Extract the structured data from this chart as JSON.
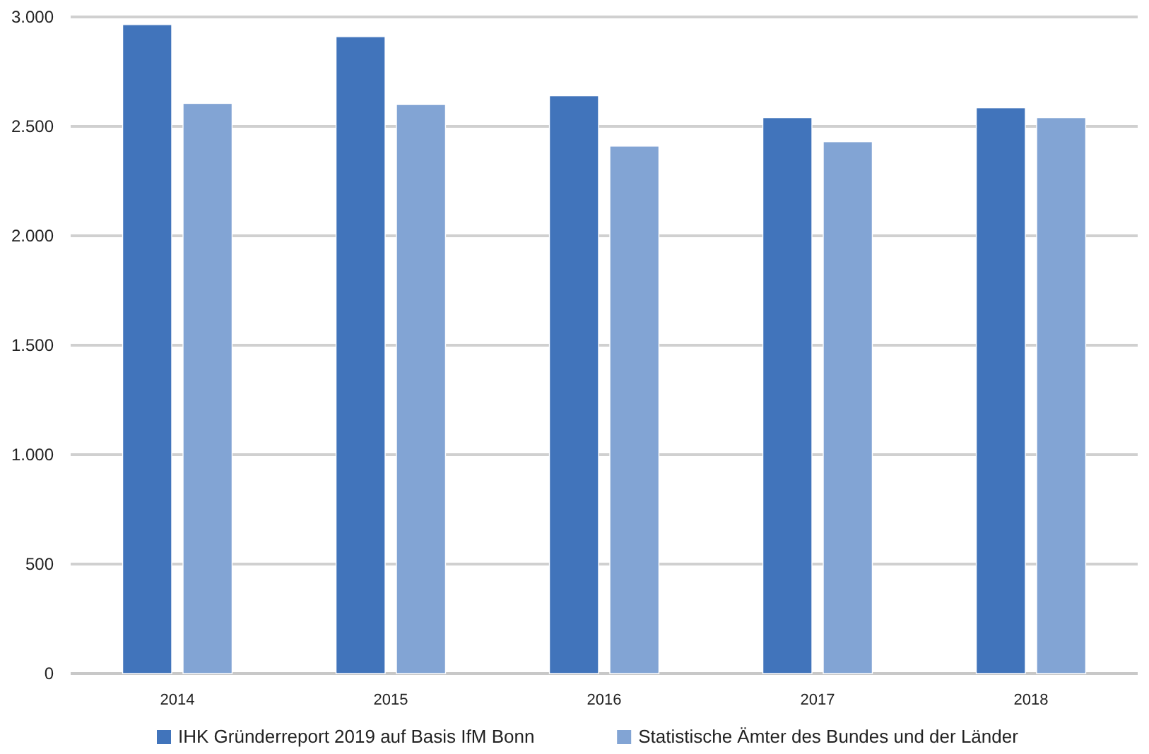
{
  "chart_data": {
    "type": "bar",
    "categories": [
      "2014",
      "2015",
      "2016",
      "2017",
      "2018"
    ],
    "series": [
      {
        "name": "IHK Gründerreport 2019 auf Basis IfM Bonn",
        "color": "#4174bb",
        "values": [
          2965,
          2910,
          2640,
          2540,
          2585
        ]
      },
      {
        "name": "Statistische Ämter des Bundes und der Länder",
        "color": "#82a4d4",
        "values": [
          2605,
          2600,
          2410,
          2430,
          2540
        ]
      }
    ],
    "ylim": [
      0,
      3000
    ],
    "yticks": [
      {
        "value": 0,
        "label": "0"
      },
      {
        "value": 500,
        "label": "500"
      },
      {
        "value": 1000,
        "label": "1.000"
      },
      {
        "value": 1500,
        "label": "1.500"
      },
      {
        "value": 2000,
        "label": "2.000"
      },
      {
        "value": 2500,
        "label": "2.500"
      },
      {
        "value": 3000,
        "label": "3.000"
      }
    ],
    "grid": "y",
    "legend": "bottom"
  }
}
